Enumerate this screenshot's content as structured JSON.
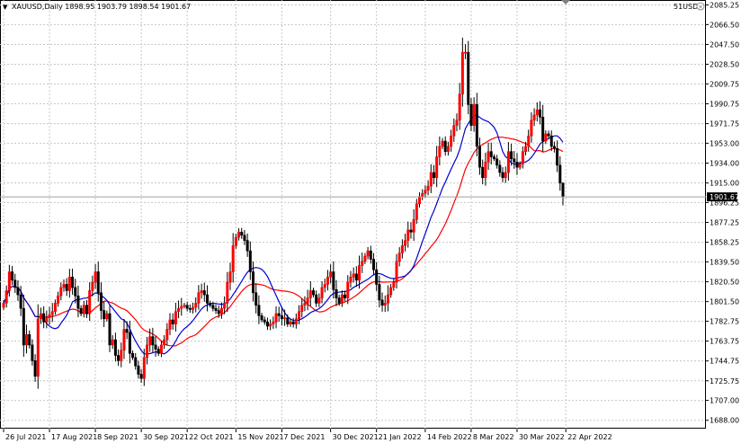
{
  "header": {
    "title": "XAUUSD,Daily  1898.95 1903.79 1898.54 1901.67"
  },
  "account_label": "51USD",
  "current_price_label": "1901.67",
  "colors": {
    "bull": "#ffffff",
    "bear": "#000000",
    "bull_fill": "#ff0000",
    "ma_fast": "#0000cc",
    "ma_slow": "#ff0000",
    "grid": "#c8c8c8"
  },
  "chart_data": {
    "type": "candlestick",
    "title": "XAUUSD,Daily",
    "ohlc_header": {
      "open": 1898.95,
      "high": 1903.79,
      "low": 1898.54,
      "close": 1901.67
    },
    "ylim": [
      1680,
      2090
    ],
    "y_ticks": [
      "2085.25",
      "2066.50",
      "2047.50",
      "2028.50",
      "2009.75",
      "1990.75",
      "1971.75",
      "1953.00",
      "1934.00",
      "1915.00",
      "1896.25",
      "1877.25",
      "1858.25",
      "1839.50",
      "1820.50",
      "1801.50",
      "1782.75",
      "1763.75",
      "1744.75",
      "1725.75",
      "1707.00",
      "1688.00"
    ],
    "x_tick_labels": [
      {
        "label": "26 Jul 2021",
        "i": 0
      },
      {
        "label": "17 Aug 2021",
        "i": 16
      },
      {
        "label": "8 Sep 2021",
        "i": 32
      },
      {
        "label": "30 Sep 2021",
        "i": 48
      },
      {
        "label": "22 Oct 2021",
        "i": 64
      },
      {
        "label": "15 Nov 2021",
        "i": 81
      },
      {
        "label": "7 Dec 2021",
        "i": 97
      },
      {
        "label": "30 Dec 2021",
        "i": 114
      },
      {
        "label": "21 Jan 2022",
        "i": 130
      },
      {
        "label": "14 Feb 2022",
        "i": 147
      },
      {
        "label": "8 Mar 2022",
        "i": 163
      },
      {
        "label": "30 Mar 2022",
        "i": 179
      },
      {
        "label": "22 Apr 2022",
        "i": 196
      }
    ],
    "last_price": 1901.67,
    "closes": [
      1800,
      1812,
      1830,
      1822,
      1815,
      1808,
      1795,
      1760,
      1770,
      1760,
      1745,
      1730,
      1785,
      1790,
      1782,
      1786,
      1789,
      1792,
      1800,
      1807,
      1815,
      1818,
      1812,
      1825,
      1815,
      1807,
      1795,
      1790,
      1798,
      1790,
      1812,
      1820,
      1830,
      1810,
      1793,
      1785,
      1790,
      1760,
      1765,
      1750,
      1745,
      1755,
      1775,
      1772,
      1752,
      1748,
      1740,
      1732,
      1728,
      1748,
      1760,
      1768,
      1760,
      1756,
      1752,
      1760,
      1765,
      1775,
      1784,
      1780,
      1792,
      1795,
      1797,
      1798,
      1795,
      1794,
      1796,
      1800,
      1810,
      1812,
      1808,
      1800,
      1798,
      1795,
      1793,
      1790,
      1795,
      1800,
      1820,
      1830,
      1855,
      1863,
      1868,
      1865,
      1860,
      1850,
      1830,
      1810,
      1798,
      1788,
      1784,
      1782,
      1778,
      1780,
      1782,
      1790,
      1788,
      1785,
      1786,
      1780,
      1782,
      1780,
      1785,
      1792,
      1798,
      1800,
      1805,
      1812,
      1808,
      1800,
      1805,
      1815,
      1818,
      1825,
      1830,
      1813,
      1805,
      1800,
      1808,
      1805,
      1820,
      1825,
      1828,
      1822,
      1836,
      1840,
      1845,
      1850,
      1842,
      1832,
      1818,
      1803,
      1798,
      1800,
      1808,
      1815,
      1820,
      1840,
      1848,
      1855,
      1860,
      1870,
      1868,
      1880,
      1895,
      1902,
      1905,
      1908,
      1912,
      1925,
      1920,
      1940,
      1950,
      1955,
      1945,
      1950,
      1960,
      1970,
      1975,
      2000,
      2040,
      2040,
      1990,
      1970,
      1990,
      1950,
      1930,
      1920,
      1935,
      1945,
      1940,
      1938,
      1932,
      1925,
      1920,
      1925,
      1945,
      1938,
      1935,
      1930,
      1933,
      1945,
      1950,
      1960,
      1975,
      1980,
      1985,
      1978,
      1955,
      1962,
      1960,
      1950,
      1948,
      1932,
      1915,
      1901.67
    ]
  }
}
